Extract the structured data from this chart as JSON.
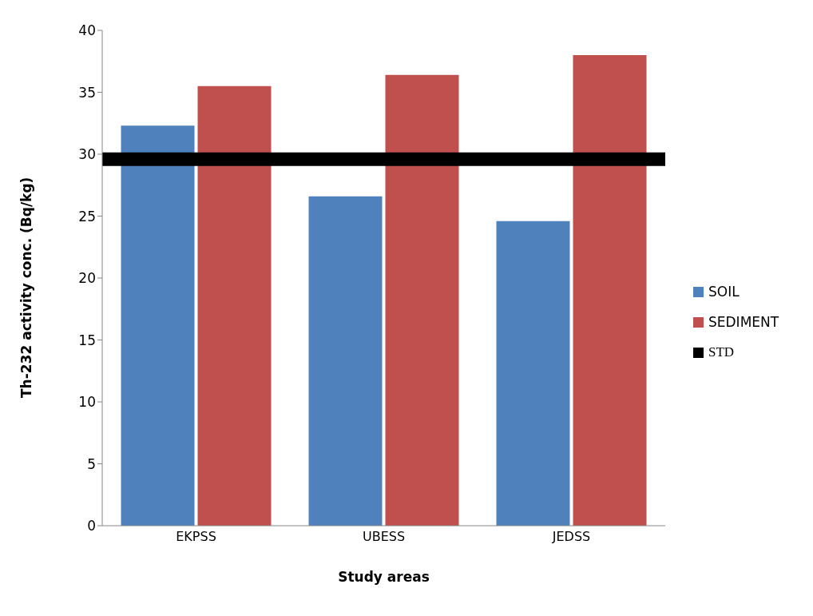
{
  "chart_data": {
    "type": "bar",
    "xlabel": "Study areas",
    "ylabel": "Th-232 activity conc. (Bq/kg)",
    "categories": [
      "EKPSS",
      "UBESS",
      "JEDSS"
    ],
    "series": [
      {
        "name": "SOIL",
        "color": "#4f81bd",
        "values": [
          32.3,
          26.6,
          24.6
        ]
      },
      {
        "name": "SEDIMENT",
        "color": "#c0504d",
        "values": [
          35.5,
          36.4,
          38.0
        ]
      }
    ],
    "ref_lines": [
      {
        "axis": "y",
        "value": 29.6,
        "label": "STD",
        "color": "#000000"
      }
    ],
    "ylim": [
      0,
      40
    ],
    "yticks": [
      0,
      5,
      10,
      15,
      20,
      25,
      30,
      35,
      40
    ],
    "legend": "right"
  }
}
